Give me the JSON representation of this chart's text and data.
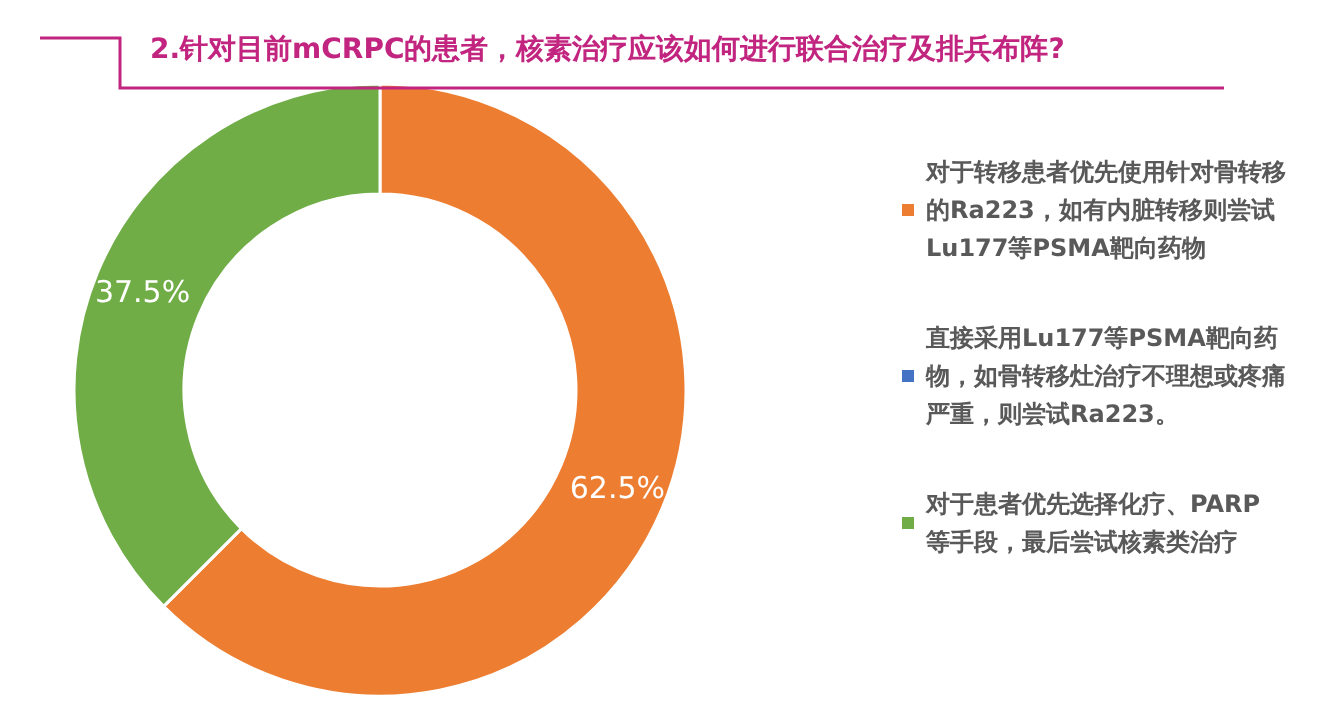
{
  "chart_data": {
    "type": "donut",
    "title": "2.针对目前mCRPC的患者，核素治疗应该如何进行联合治疗及排兵布阵?",
    "categories": [
      "对于转移患者优先使用针对骨转移的Ra223，如有内脏转移则尝试Lu177等PSMA靶向药物",
      "直接采用Lu177等PSMA靶向药物，如骨转移灶治疗不理想或疼痛严重，则尝试Ra223。",
      "对于患者优先选择化疗、PARP等手段，最后尝试核素类治疗"
    ],
    "values": [
      62.5,
      0,
      37.5
    ],
    "colors": [
      "#ed7d31",
      "#4472c4",
      "#70ad47"
    ],
    "value_labels": [
      "62.5%",
      null,
      "37.5%"
    ],
    "legend": "right"
  }
}
